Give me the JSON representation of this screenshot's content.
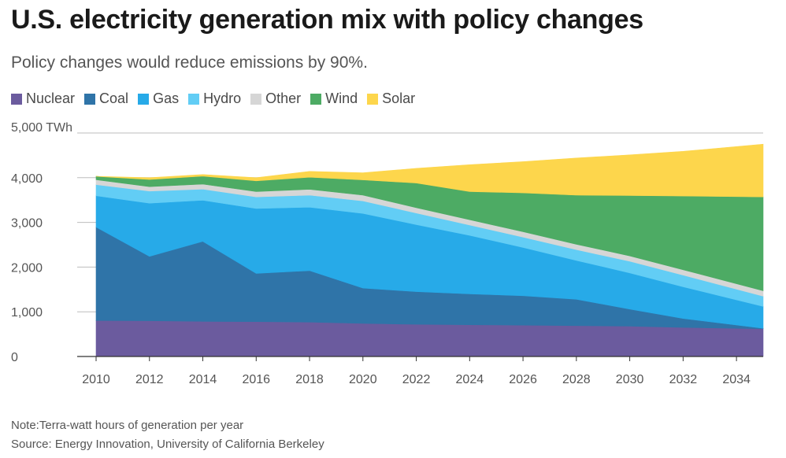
{
  "header": {
    "title": "U.S. electricity generation mix with policy changes",
    "subtitle": "Policy changes would reduce emissions by 90%."
  },
  "footer": {
    "note": "Note:Terra-watt hours of generation per year",
    "source": "Source: Energy Innovation, University of California Berkeley"
  },
  "chart_data": {
    "type": "area",
    "stacked": true,
    "title": "U.S. electricity generation mix with policy changes",
    "subtitle": "Policy changes would reduce emissions by 90%.",
    "xlabel": "",
    "ylabel": "TWh",
    "unit_label": "5,000 TWh",
    "ylim": [
      0,
      5000
    ],
    "xlim": [
      2010,
      2035
    ],
    "y_ticks": [
      {
        "value": 0,
        "label": "0"
      },
      {
        "value": 1000,
        "label": "1,000"
      },
      {
        "value": 2000,
        "label": "2,000"
      },
      {
        "value": 3000,
        "label": "3,000"
      },
      {
        "value": 4000,
        "label": "4,000"
      },
      {
        "value": 5000,
        "label": "5,000 TWh"
      }
    ],
    "x_ticks": [
      {
        "value": 2010,
        "label": "2010"
      },
      {
        "value": 2012,
        "label": "2012"
      },
      {
        "value": 2014,
        "label": "2014"
      },
      {
        "value": 2016,
        "label": "2016"
      },
      {
        "value": 2018,
        "label": "2018"
      },
      {
        "value": 2020,
        "label": "2020"
      },
      {
        "value": 2022,
        "label": "2022"
      },
      {
        "value": 2024,
        "label": "2024"
      },
      {
        "value": 2026,
        "label": "2026"
      },
      {
        "value": 2028,
        "label": "2028"
      },
      {
        "value": 2030,
        "label": "2030"
      },
      {
        "value": 2032,
        "label": "2032"
      },
      {
        "value": 2034,
        "label": "2034"
      }
    ],
    "grid": true,
    "legend_position": "top-left",
    "x": [
      2010,
      2012,
      2014,
      2016,
      2018,
      2020,
      2022,
      2024,
      2026,
      2028,
      2030,
      2032,
      2035
    ],
    "series": [
      {
        "name": "Nuclear",
        "color": "#6b5b9e",
        "values": [
          805,
          800,
          785,
          780,
          770,
          740,
          720,
          710,
          700,
          690,
          680,
          650,
          620
        ]
      },
      {
        "name": "Coal",
        "color": "#2f74a8",
        "values": [
          2090,
          1440,
          1790,
          1080,
          1150,
          790,
          730,
          690,
          660,
          590,
          380,
          200,
          10
        ]
      },
      {
        "name": "Gas",
        "color": "#27aae8",
        "values": [
          700,
          1190,
          920,
          1450,
          1420,
          1670,
          1500,
          1310,
          1080,
          870,
          810,
          710,
          490
        ]
      },
      {
        "name": "Hydro",
        "color": "#62cdf5",
        "values": [
          250,
          270,
          250,
          260,
          270,
          280,
          260,
          230,
          230,
          240,
          260,
          260,
          230
        ]
      },
      {
        "name": "Other",
        "color": "#d6d6d6",
        "values": [
          110,
          100,
          110,
          120,
          130,
          130,
          120,
          120,
          120,
          120,
          120,
          120,
          120
        ]
      },
      {
        "name": "Wind",
        "color": "#4dab64",
        "values": [
          75,
          160,
          180,
          240,
          270,
          340,
          550,
          630,
          870,
          1100,
          1350,
          1650,
          2100
        ]
      },
      {
        "name": "Solar",
        "color": "#fdd64c",
        "values": [
          0,
          40,
          35,
          70,
          130,
          160,
          330,
          600,
          700,
          830,
          910,
          1000,
          1180
        ]
      }
    ]
  }
}
